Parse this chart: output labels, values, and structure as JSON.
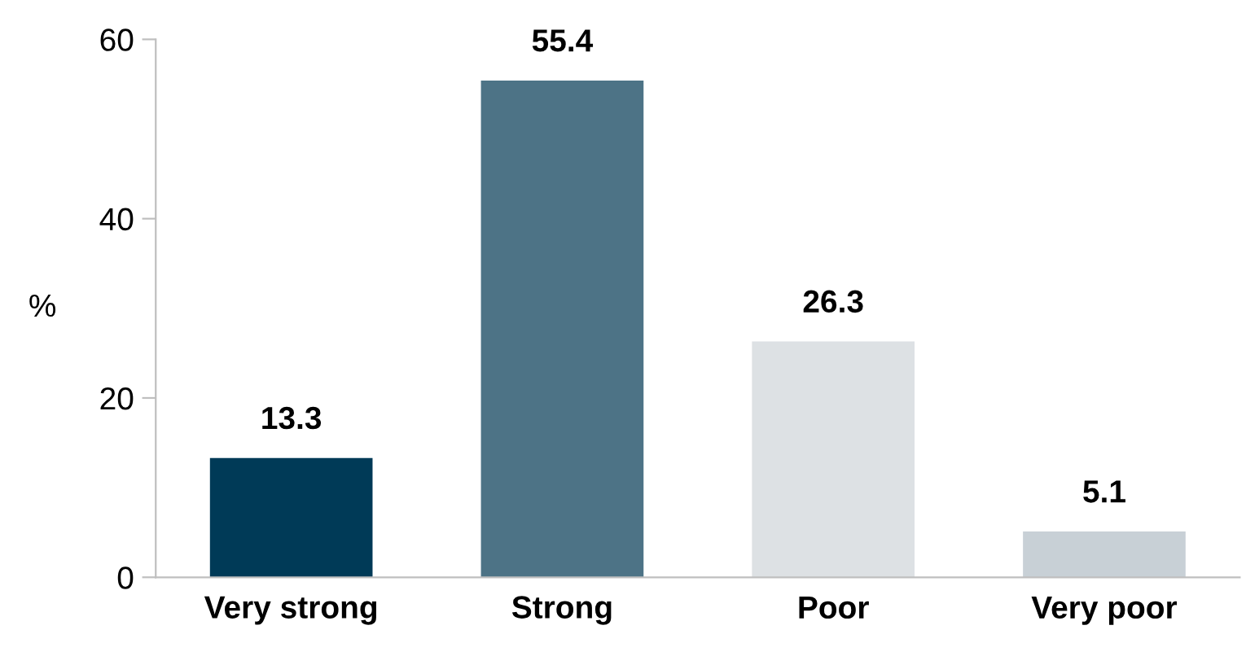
{
  "chart_data": {
    "type": "bar",
    "ylabel": "%",
    "categories": [
      "Very strong",
      "Strong",
      "Poor",
      "Very poor"
    ],
    "values": [
      13.3,
      55.4,
      26.3,
      5.1
    ],
    "colors": [
      "#003a57",
      "#4d7386",
      "#dde1e4",
      "#c8d0d6"
    ],
    "ylim": [
      0,
      60
    ],
    "yticks": [
      0,
      20,
      40,
      60
    ],
    "grid": false,
    "legend": false,
    "data_labels": true
  }
}
